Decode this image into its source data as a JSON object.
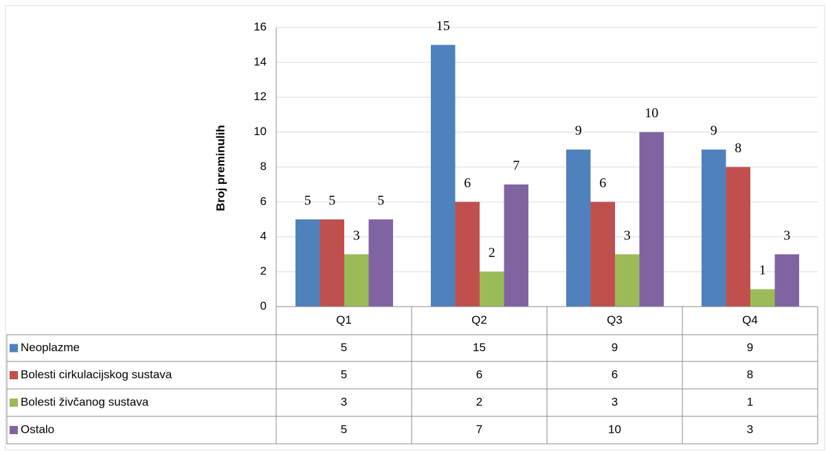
{
  "chart_data": {
    "type": "bar",
    "y_label": "Broj preminulih",
    "categories": [
      "Q1",
      "Q2",
      "Q3",
      "Q4"
    ],
    "series": [
      {
        "name": "Neoplazme",
        "color": "#4f81bd",
        "values": [
          5,
          15,
          9,
          9
        ]
      },
      {
        "name": "Bolesti cirkulacijskog sustava",
        "color": "#c0504d",
        "values": [
          5,
          6,
          6,
          8
        ]
      },
      {
        "name": "Bolesti živčanog sustava",
        "color": "#9bbb59",
        "values": [
          3,
          2,
          3,
          1
        ]
      },
      {
        "name": "Ostalo",
        "color": "#8064a2",
        "values": [
          5,
          7,
          10,
          3
        ]
      }
    ],
    "ylim": [
      0,
      16
    ],
    "yticks": [
      0,
      2,
      4,
      6,
      8,
      10,
      12,
      14,
      16
    ],
    "grid": true
  }
}
